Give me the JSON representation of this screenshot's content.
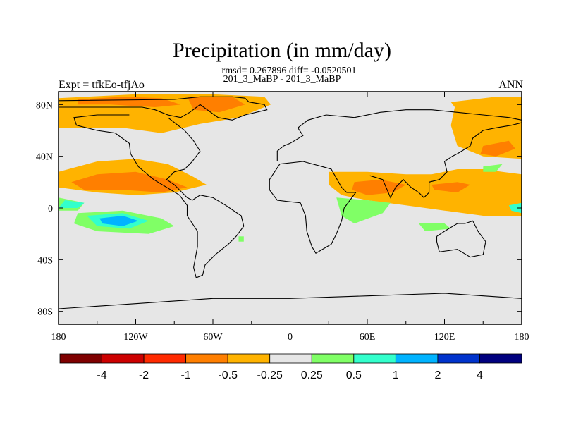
{
  "header": {
    "title": "Precipitation (in mm/day)",
    "stats": "rmsd= 0.267896  diff= -0.0520501",
    "case_label": "201_3_MaBP - 201_3_MaBP",
    "left_string": "Expt = tfkEo-tfjAo",
    "right_string": "ANN"
  },
  "colors": {
    "background_land": "#e6e6e6",
    "coastline": "#000000"
  },
  "chart_data": {
    "type": "heatmap",
    "projection": "cylindrical-equidistant",
    "xlim": [
      -180,
      180
    ],
    "ylim": [
      -90,
      90
    ],
    "x_ticks": [
      {
        "value": -180,
        "label": "180"
      },
      {
        "value": -120,
        "label": "120W"
      },
      {
        "value": -60,
        "label": "60W"
      },
      {
        "value": 0,
        "label": "0"
      },
      {
        "value": 60,
        "label": "60E"
      },
      {
        "value": 120,
        "label": "120E"
      },
      {
        "value": 180,
        "label": "180"
      }
    ],
    "y_ticks": [
      {
        "value": 80,
        "label": "80N"
      },
      {
        "value": 40,
        "label": "40N"
      },
      {
        "value": 0,
        "label": "0"
      },
      {
        "value": -40,
        "label": "40S"
      },
      {
        "value": -80,
        "label": "80S"
      }
    ],
    "colorbar": {
      "bins": [
        "#7f0000",
        "#cc0000",
        "#ff2a00",
        "#ff7f00",
        "#ffb300",
        "#e6e6e6",
        "#80ff66",
        "#33ffcc",
        "#00b3ff",
        "#0033cc",
        "#00007f"
      ],
      "labels": [
        "-4",
        "-2",
        "-1",
        "-0.5",
        "-0.25",
        "0.25",
        "0.5",
        "1",
        "2",
        "4"
      ]
    },
    "regions": [
      {
        "level": "-0.25",
        "color": "#ffb300",
        "points": [
          [
            -180,
            85
          ],
          [
            -120,
            88
          ],
          [
            -60,
            88
          ],
          [
            -20,
            86
          ],
          [
            -15,
            80
          ],
          [
            -40,
            70
          ],
          [
            -70,
            65
          ],
          [
            -100,
            58
          ],
          [
            -130,
            62
          ],
          [
            -180,
            62
          ]
        ]
      },
      {
        "level": "-0.5",
        "color": "#ff7f00",
        "points": [
          [
            -165,
            84
          ],
          [
            -130,
            86
          ],
          [
            -100,
            85
          ],
          [
            -85,
            80
          ],
          [
            -105,
            78
          ],
          [
            -140,
            80
          ],
          [
            -165,
            80
          ]
        ]
      },
      {
        "level": "-0.5",
        "color": "#ff7f00",
        "points": [
          [
            -80,
            86
          ],
          [
            -45,
            86
          ],
          [
            -35,
            80
          ],
          [
            -55,
            74
          ],
          [
            -75,
            76
          ]
        ]
      },
      {
        "level": "-0.25",
        "color": "#ffb300",
        "points": [
          [
            -180,
            28
          ],
          [
            -150,
            36
          ],
          [
            -120,
            38
          ],
          [
            -95,
            34
          ],
          [
            -75,
            24
          ],
          [
            -65,
            18
          ],
          [
            -90,
            12
          ],
          [
            -120,
            10
          ],
          [
            -150,
            12
          ],
          [
            -180,
            16
          ]
        ]
      },
      {
        "level": "-0.5",
        "color": "#ff7f00",
        "points": [
          [
            -170,
            20
          ],
          [
            -150,
            26
          ],
          [
            -120,
            28
          ],
          [
            -95,
            22
          ],
          [
            -80,
            16
          ],
          [
            -100,
            12
          ],
          [
            -130,
            14
          ],
          [
            -160,
            14
          ]
        ]
      },
      {
        "level": "-0.25",
        "color": "#ffb300",
        "points": [
          [
            30,
            28
          ],
          [
            60,
            28
          ],
          [
            90,
            26
          ],
          [
            110,
            26
          ],
          [
            130,
            30
          ],
          [
            150,
            30
          ],
          [
            165,
            28
          ],
          [
            180,
            26
          ],
          [
            180,
            -6
          ],
          [
            150,
            -6
          ],
          [
            120,
            -2
          ],
          [
            90,
            2
          ],
          [
            60,
            6
          ],
          [
            40,
            10
          ],
          [
            30,
            18
          ]
        ]
      },
      {
        "level": "-0.5",
        "color": "#ff7f00",
        "points": [
          [
            50,
            20
          ],
          [
            70,
            22
          ],
          [
            90,
            18
          ],
          [
            80,
            12
          ],
          [
            60,
            10
          ],
          [
            48,
            14
          ]
        ]
      },
      {
        "level": "-0.5",
        "color": "#ff7f00",
        "points": [
          [
            110,
            18
          ],
          [
            130,
            20
          ],
          [
            140,
            18
          ],
          [
            130,
            12
          ],
          [
            112,
            14
          ]
        ]
      },
      {
        "level": "-0.25",
        "color": "#ffb300",
        "points": [
          [
            125,
            82
          ],
          [
            160,
            86
          ],
          [
            180,
            86
          ],
          [
            180,
            38
          ],
          [
            150,
            40
          ],
          [
            130,
            48
          ],
          [
            125,
            64
          ],
          [
            128,
            78
          ]
        ]
      },
      {
        "level": "-0.5",
        "color": "#ff7f00",
        "points": [
          [
            150,
            48
          ],
          [
            170,
            52
          ],
          [
            175,
            46
          ],
          [
            160,
            40
          ],
          [
            148,
            42
          ]
        ]
      },
      {
        "level": "0.25",
        "color": "#80ff66",
        "points": [
          [
            -180,
            8
          ],
          [
            -170,
            6
          ],
          [
            -160,
            4
          ],
          [
            -165,
            -2
          ],
          [
            -180,
            -2
          ]
        ]
      },
      {
        "level": "0.25",
        "color": "#80ff66",
        "points": [
          [
            -165,
            -4
          ],
          [
            -130,
            -2
          ],
          [
            -100,
            -8
          ],
          [
            -90,
            -14
          ],
          [
            -110,
            -20
          ],
          [
            -150,
            -18
          ],
          [
            -168,
            -12
          ]
        ]
      },
      {
        "level": "0.5",
        "color": "#33ffcc",
        "points": [
          [
            -175,
            6
          ],
          [
            -160,
            4
          ],
          [
            -165,
            0
          ],
          [
            -180,
            0
          ]
        ]
      },
      {
        "level": "0.5",
        "color": "#33ffcc",
        "points": [
          [
            -158,
            -6
          ],
          [
            -130,
            -4
          ],
          [
            -110,
            -10
          ],
          [
            -125,
            -16
          ],
          [
            -150,
            -14
          ]
        ]
      },
      {
        "level": "1",
        "color": "#00b3ff",
        "points": [
          [
            -148,
            -8
          ],
          [
            -130,
            -6
          ],
          [
            -118,
            -10
          ],
          [
            -130,
            -14
          ],
          [
            -146,
            -12
          ]
        ]
      },
      {
        "level": "0.25",
        "color": "#80ff66",
        "points": [
          [
            36,
            8
          ],
          [
            60,
            6
          ],
          [
            78,
            4
          ],
          [
            72,
            -4
          ],
          [
            50,
            -12
          ],
          [
            40,
            -6
          ]
        ]
      },
      {
        "level": "0.25",
        "color": "#80ff66",
        "points": [
          [
            100,
            -12
          ],
          [
            120,
            -12
          ],
          [
            125,
            -16
          ],
          [
            105,
            -18
          ]
        ]
      },
      {
        "level": "0.25",
        "color": "#80ff66",
        "points": [
          [
            150,
            32
          ],
          [
            165,
            34
          ],
          [
            160,
            28
          ],
          [
            150,
            28
          ]
        ]
      },
      {
        "level": "0.25",
        "color": "#80ff66",
        "points": [
          [
            -40,
            -22
          ],
          [
            -36,
            -22
          ],
          [
            -36,
            -26
          ],
          [
            -40,
            -26
          ]
        ]
      },
      {
        "level": "0.5",
        "color": "#33ffcc",
        "points": [
          [
            170,
            2
          ],
          [
            180,
            4
          ],
          [
            180,
            -4
          ],
          [
            172,
            -2
          ]
        ]
      }
    ],
    "coastlines": [
      {
        "name": "north-america-greenland",
        "points": [
          [
            -180,
            83
          ],
          [
            -90,
            84
          ],
          [
            -70,
            86
          ],
          [
            -45,
            86
          ],
          [
            -35,
            85
          ],
          [
            -32,
            82
          ],
          [
            -20,
            80
          ],
          [
            -18,
            76
          ],
          [
            -35,
            72
          ],
          [
            -45,
            68
          ],
          [
            -56,
            70
          ],
          [
            -70,
            80
          ],
          [
            -78,
            74
          ],
          [
            -85,
            70
          ],
          [
            -95,
            72
          ],
          [
            -105,
            76
          ],
          [
            -115,
            78
          ],
          [
            -135,
            78
          ],
          [
            -160,
            78
          ],
          [
            -180,
            78
          ]
        ]
      },
      {
        "name": "americas-outline",
        "points": [
          [
            -95,
            70
          ],
          [
            -82,
            60
          ],
          [
            -75,
            52
          ],
          [
            -70,
            44
          ],
          [
            -76,
            36
          ],
          [
            -82,
            30
          ],
          [
            -90,
            28
          ],
          [
            -96,
            22
          ],
          [
            -90,
            18
          ],
          [
            -84,
            12
          ],
          [
            -80,
            8
          ],
          [
            -76,
            6
          ],
          [
            -70,
            10
          ],
          [
            -60,
            8
          ],
          [
            -50,
            2
          ],
          [
            -38,
            -6
          ],
          [
            -36,
            -14
          ],
          [
            -42,
            -22
          ],
          [
            -48,
            -28
          ],
          [
            -58,
            -36
          ],
          [
            -66,
            -44
          ],
          [
            -68,
            -52
          ],
          [
            -73,
            -54
          ],
          [
            -75,
            -46
          ],
          [
            -72,
            -30
          ],
          [
            -72,
            -18
          ],
          [
            -80,
            -6
          ],
          [
            -80,
            2
          ],
          [
            -86,
            10
          ],
          [
            -96,
            16
          ],
          [
            -106,
            22
          ],
          [
            -118,
            32
          ],
          [
            -124,
            42
          ],
          [
            -125,
            50
          ],
          [
            -136,
            58
          ],
          [
            -150,
            60
          ],
          [
            -166,
            64
          ],
          [
            -168,
            70
          ],
          [
            -150,
            72
          ],
          [
            -125,
            72
          ]
        ]
      },
      {
        "name": "eurasia-africa",
        "points": [
          [
            -10,
            36
          ],
          [
            -10,
            44
          ],
          [
            -5,
            48
          ],
          [
            0,
            50
          ],
          [
            10,
            56
          ],
          [
            6,
            62
          ],
          [
            14,
            68
          ],
          [
            28,
            72
          ],
          [
            50,
            70
          ],
          [
            70,
            74
          ],
          [
            90,
            76
          ],
          [
            110,
            76
          ],
          [
            130,
            74
          ],
          [
            150,
            72
          ],
          [
            170,
            70
          ],
          [
            180,
            68
          ]
        ]
      },
      {
        "name": "africa",
        "points": [
          [
            -16,
            14
          ],
          [
            -16,
            22
          ],
          [
            -8,
            34
          ],
          [
            10,
            36
          ],
          [
            25,
            32
          ],
          [
            32,
            30
          ],
          [
            40,
            16
          ],
          [
            44,
            12
          ],
          [
            51,
            12
          ],
          [
            42,
            0
          ],
          [
            40,
            -10
          ],
          [
            36,
            -20
          ],
          [
            32,
            -28
          ],
          [
            20,
            -35
          ],
          [
            17,
            -30
          ],
          [
            13,
            -18
          ],
          [
            12,
            -6
          ],
          [
            8,
            4
          ],
          [
            -2,
            5
          ],
          [
            -10,
            6
          ],
          [
            -16,
            14
          ]
        ]
      },
      {
        "name": "india-seasia",
        "points": [
          [
            62,
            25
          ],
          [
            72,
            22
          ],
          [
            78,
            8
          ],
          [
            82,
            16
          ],
          [
            88,
            22
          ],
          [
            94,
            16
          ],
          [
            100,
            12
          ],
          [
            104,
            8
          ],
          [
            108,
            12
          ],
          [
            108,
            20
          ],
          [
            116,
            22
          ],
          [
            122,
            28
          ],
          [
            120,
            36
          ],
          [
            126,
            40
          ],
          [
            130,
            42
          ],
          [
            140,
            48
          ],
          [
            142,
            54
          ],
          [
            150,
            60
          ],
          [
            160,
            62
          ],
          [
            172,
            64
          ],
          [
            180,
            66
          ]
        ]
      },
      {
        "name": "australia",
        "points": [
          [
            114,
            -22
          ],
          [
            120,
            -18
          ],
          [
            130,
            -12
          ],
          [
            136,
            -12
          ],
          [
            142,
            -10
          ],
          [
            146,
            -18
          ],
          [
            152,
            -26
          ],
          [
            150,
            -36
          ],
          [
            140,
            -38
          ],
          [
            130,
            -32
          ],
          [
            116,
            -34
          ],
          [
            114,
            -26
          ],
          [
            114,
            -22
          ]
        ]
      },
      {
        "name": "antarctica",
        "points": [
          [
            -180,
            -78
          ],
          [
            -120,
            -74
          ],
          [
            -60,
            -70
          ],
          [
            0,
            -70
          ],
          [
            60,
            -68
          ],
          [
            120,
            -66
          ],
          [
            180,
            -70
          ]
        ]
      }
    ]
  }
}
